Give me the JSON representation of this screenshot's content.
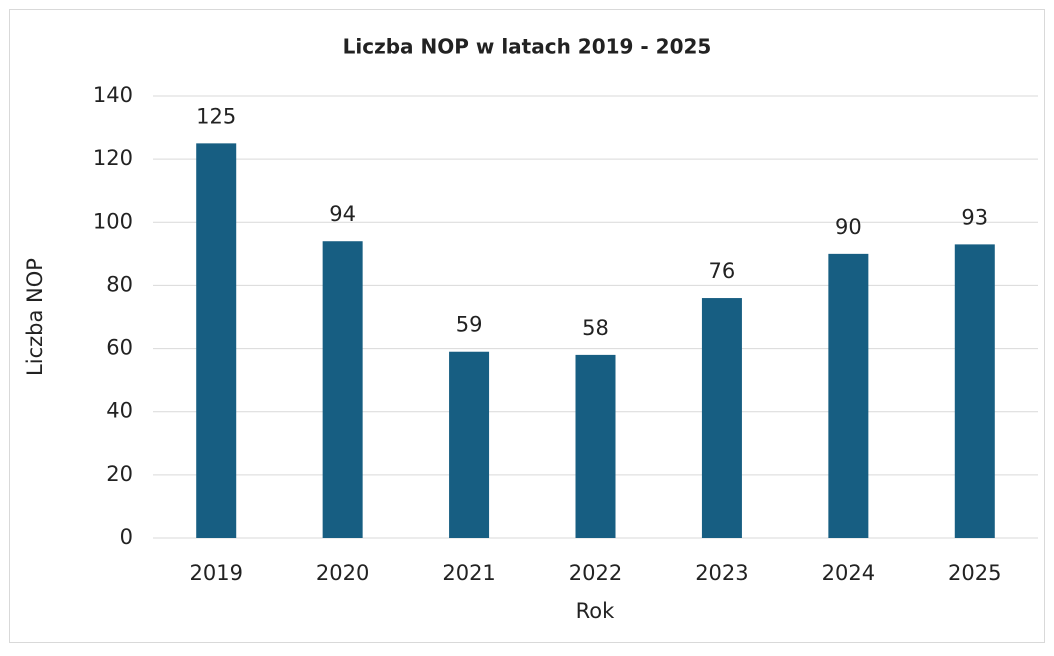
{
  "chart_data": {
    "type": "bar",
    "title": "Liczba NOP w latach 2019 - 2025",
    "x_label": "Rok",
    "y_label": "Liczba NOP",
    "categories": [
      "2019",
      "2020",
      "2021",
      "2022",
      "2023",
      "2024",
      "2025"
    ],
    "values": [
      125,
      94,
      59,
      58,
      76,
      90,
      93
    ],
    "color": "#175e82",
    "ylim": [
      0,
      140
    ],
    "yticks": [
      0,
      20,
      40,
      60,
      80,
      100,
      120,
      140
    ],
    "grid": true
  }
}
